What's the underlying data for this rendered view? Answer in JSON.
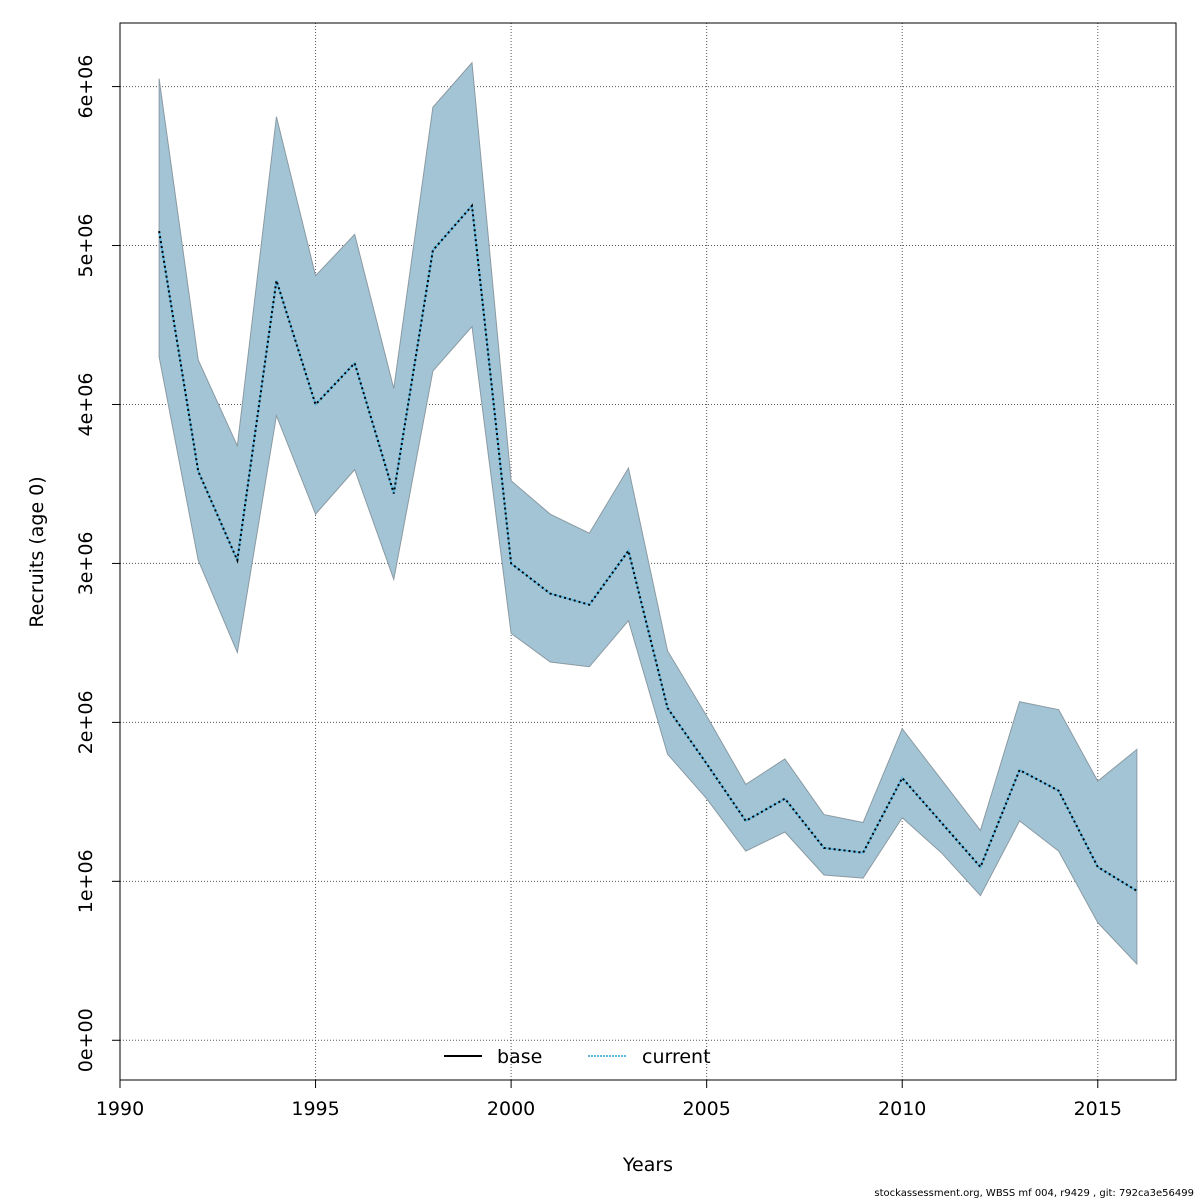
{
  "chart_data": {
    "type": "line",
    "title": "",
    "xlabel": "Years",
    "ylabel": "Recruits (age 0)",
    "xlim": [
      1990,
      2017
    ],
    "ylim": [
      -250000,
      6400000
    ],
    "grid": true,
    "x_ticks": [
      1990,
      1995,
      2000,
      2005,
      2010,
      2015
    ],
    "y_ticks": [
      0,
      1000000,
      2000000,
      3000000,
      4000000,
      5000000,
      6000000
    ],
    "y_tick_labels": [
      "0e+00",
      "1e+06",
      "2e+06",
      "3e+06",
      "4e+06",
      "5e+06",
      "6e+06"
    ],
    "legend": {
      "placement": "bottom",
      "entries": [
        {
          "label": "base",
          "color": "#000000",
          "style": "solid"
        },
        {
          "label": "current",
          "color": "#5fb8e0",
          "style": "dotted"
        }
      ]
    },
    "x": [
      1991,
      1992,
      1993,
      1994,
      1995,
      1996,
      1997,
      1998,
      1999,
      2000,
      2001,
      2002,
      2003,
      2004,
      2005,
      2006,
      2007,
      2008,
      2009,
      2010,
      2011,
      2012,
      2013,
      2014,
      2015,
      2016
    ],
    "series": [
      {
        "name": "current",
        "values": [
          5090000,
          3580000,
          3020000,
          4780000,
          4000000,
          4260000,
          3440000,
          4970000,
          5250000,
          3000000,
          2810000,
          2740000,
          3080000,
          2090000,
          1740000,
          1380000,
          1520000,
          1210000,
          1180000,
          1650000,
          1370000,
          1090000,
          1700000,
          1570000,
          1090000,
          940000
        ]
      }
    ],
    "band": {
      "color": "#a3c4d5",
      "upper": [
        6050000,
        4280000,
        3740000,
        5810000,
        4810000,
        5070000,
        4100000,
        5870000,
        6150000,
        3520000,
        3310000,
        3190000,
        3600000,
        2450000,
        2040000,
        1610000,
        1770000,
        1420000,
        1370000,
        1960000,
        1640000,
        1320000,
        2130000,
        2080000,
        1630000,
        1830000
      ],
      "lower": [
        4300000,
        3020000,
        2440000,
        3930000,
        3310000,
        3590000,
        2900000,
        4210000,
        4490000,
        2560000,
        2380000,
        2350000,
        2640000,
        1800000,
        1520000,
        1190000,
        1310000,
        1040000,
        1020000,
        1400000,
        1180000,
        910000,
        1380000,
        1190000,
        740000,
        480000
      ]
    }
  },
  "footer": "stockassessment.org, WBSS  mf  004, r9429 , git: 792ca3e56499"
}
